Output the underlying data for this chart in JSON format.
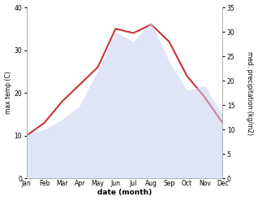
{
  "months": [
    "Jan",
    "Feb",
    "Mar",
    "Apr",
    "May",
    "Jun",
    "Jul",
    "Aug",
    "Sep",
    "Oct",
    "Nov",
    "Dec"
  ],
  "temp": [
    10,
    13,
    18,
    22,
    26,
    35,
    34,
    36,
    32,
    24,
    19,
    13
  ],
  "precip": [
    9,
    10,
    12,
    15,
    22,
    30,
    28,
    32,
    24,
    18,
    19,
    13
  ],
  "temp_color": "#cc3333",
  "precip_color_fill": "#c5cef0",
  "ylabel_left": "max temp (C)",
  "ylabel_right": "med. precipitation (kg/m2)",
  "xlabel": "date (month)",
  "ylim_left": [
    0,
    40
  ],
  "ylim_right": [
    0,
    35
  ],
  "yticks_left": [
    0,
    10,
    20,
    30,
    40
  ],
  "yticks_right": [
    0,
    5,
    10,
    15,
    20,
    25,
    30,
    35
  ],
  "bg_color": "#ffffff",
  "temp_linewidth": 1.5,
  "precip_alpha": 0.55
}
